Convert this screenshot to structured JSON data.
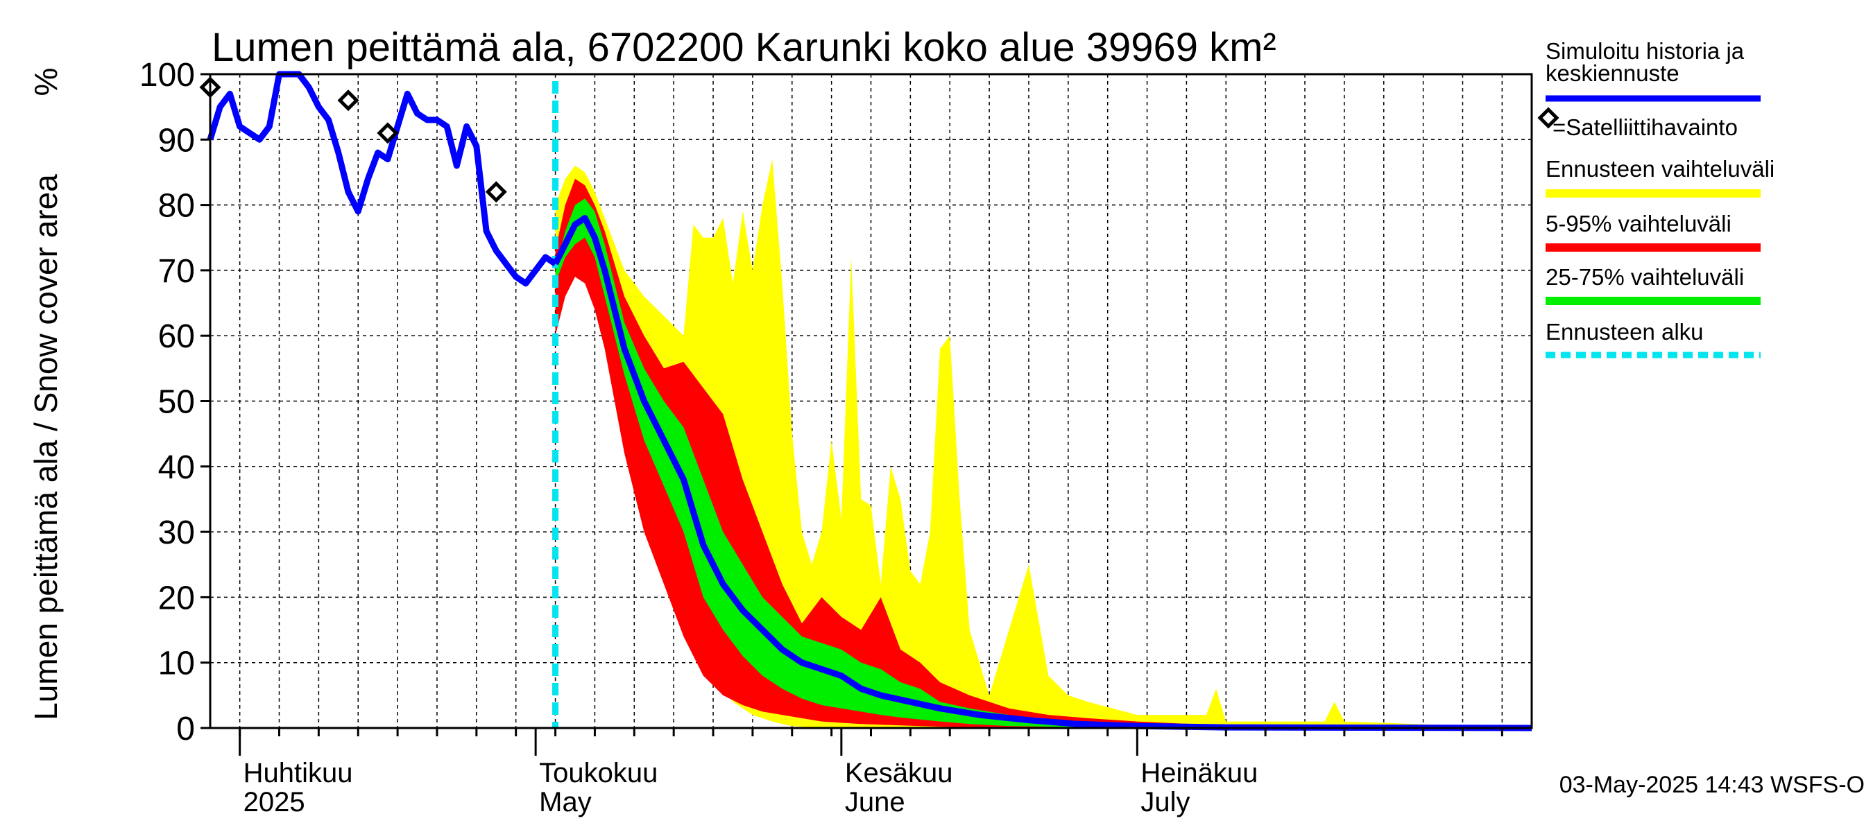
{
  "chart_data": {
    "type": "area",
    "title": "Lumen peittämä ala, 6702200 Karunki koko alue 39969 km²",
    "ylabel": "Lumen peittämä ala / Snow cover area",
    "yunit": "%",
    "ylim": [
      0,
      100
    ],
    "yticks": [
      0,
      10,
      20,
      30,
      40,
      50,
      60,
      70,
      80,
      90,
      100
    ],
    "xlim": [
      "2025-03-29",
      "2025-08-10"
    ],
    "forecast_start": "2025-05-03",
    "grid": true,
    "month_labels": [
      {
        "date": "2025-04-01",
        "fi": "Huhtikuu",
        "en": "2025"
      },
      {
        "date": "2025-05-01",
        "fi": "Toukokuu",
        "en": "May"
      },
      {
        "date": "2025-06-01",
        "fi": "Kesäkuu",
        "en": "June"
      },
      {
        "date": "2025-07-01",
        "fi": "Heinäkuu",
        "en": "July"
      }
    ],
    "history": {
      "name": "Simuloitu historia ja keskiennuste",
      "x": [
        "2025-03-29",
        "2025-03-30",
        "2025-03-31",
        "2025-04-01",
        "2025-04-02",
        "2025-04-03",
        "2025-04-04",
        "2025-04-05",
        "2025-04-06",
        "2025-04-07",
        "2025-04-08",
        "2025-04-09",
        "2025-04-10",
        "2025-04-11",
        "2025-04-12",
        "2025-04-13",
        "2025-04-14",
        "2025-04-15",
        "2025-04-16",
        "2025-04-17",
        "2025-04-18",
        "2025-04-19",
        "2025-04-20",
        "2025-04-21",
        "2025-04-22",
        "2025-04-23",
        "2025-04-24",
        "2025-04-25",
        "2025-04-26",
        "2025-04-27",
        "2025-04-28",
        "2025-04-29",
        "2025-04-30",
        "2025-05-01",
        "2025-05-02",
        "2025-05-03"
      ],
      "y": [
        90,
        95,
        97,
        92,
        91,
        90,
        92,
        100,
        100,
        100,
        98,
        95,
        93,
        88,
        82,
        79,
        84,
        88,
        87,
        92,
        97,
        94,
        93,
        93,
        92,
        86,
        92,
        89,
        76,
        73,
        71,
        69,
        68,
        70,
        72,
        71
      ]
    },
    "median": {
      "x": [
        "2025-05-03",
        "2025-05-04",
        "2025-05-05",
        "2025-05-06",
        "2025-05-07",
        "2025-05-08",
        "2025-05-10",
        "2025-05-12",
        "2025-05-14",
        "2025-05-16",
        "2025-05-18",
        "2025-05-20",
        "2025-05-22",
        "2025-05-24",
        "2025-05-26",
        "2025-05-28",
        "2025-05-30",
        "2025-06-01",
        "2025-06-03",
        "2025-06-05",
        "2025-06-08",
        "2025-06-11",
        "2025-06-15",
        "2025-06-20",
        "2025-06-25",
        "2025-07-01",
        "2025-07-10",
        "2025-08-10"
      ],
      "y": [
        71,
        74,
        77,
        78,
        75,
        70,
        58,
        50,
        44,
        38,
        28,
        22,
        18,
        15,
        12,
        10,
        9,
        8,
        6,
        5,
        4,
        3,
        2,
        1.2,
        0.6,
        0.3,
        0.1,
        0
      ]
    },
    "bands": [
      {
        "name": "Ennusteen vaihteluväli",
        "color": "#ffff00",
        "x": [
          "2025-05-03",
          "2025-05-04",
          "2025-05-05",
          "2025-05-06",
          "2025-05-07",
          "2025-05-08",
          "2025-05-10",
          "2025-05-12",
          "2025-05-14",
          "2025-05-16",
          "2025-05-17",
          "2025-05-18",
          "2025-05-19",
          "2025-05-20",
          "2025-05-21",
          "2025-05-22",
          "2025-05-23",
          "2025-05-24",
          "2025-05-25",
          "2025-05-26",
          "2025-05-27",
          "2025-05-28",
          "2025-05-29",
          "2025-05-30",
          "2025-05-31",
          "2025-06-01",
          "2025-06-02",
          "2025-06-03",
          "2025-06-04",
          "2025-06-05",
          "2025-06-06",
          "2025-06-07",
          "2025-06-08",
          "2025-06-09",
          "2025-06-10",
          "2025-06-11",
          "2025-06-12",
          "2025-06-13",
          "2025-06-14",
          "2025-06-16",
          "2025-06-18",
          "2025-06-20",
          "2025-06-22",
          "2025-06-24",
          "2025-06-26",
          "2025-07-01",
          "2025-07-05",
          "2025-07-08",
          "2025-07-09",
          "2025-07-10",
          "2025-07-20",
          "2025-07-21",
          "2025-07-22",
          "2025-08-10"
        ],
        "upper": [
          80,
          84,
          86,
          85,
          82,
          78,
          70,
          66,
          63,
          60,
          77,
          75,
          75,
          78,
          68,
          79,
          70,
          80,
          87,
          68,
          45,
          30,
          25,
          30,
          44,
          32,
          72,
          35,
          34,
          22,
          40,
          35,
          24,
          22,
          30,
          58,
          60,
          35,
          15,
          5,
          15,
          25,
          8,
          5,
          4,
          2,
          2,
          2,
          6,
          1,
          1,
          4,
          1,
          0
        ],
        "lower": [
          64,
          67,
          70,
          69,
          66,
          61,
          45,
          35,
          26,
          18,
          14,
          11,
          8,
          6,
          4,
          3,
          2,
          1.5,
          1,
          0.6,
          0.3,
          0.2,
          0.1,
          0,
          0,
          0,
          0,
          0,
          0,
          0,
          0,
          0,
          0,
          0,
          0,
          0,
          0,
          0,
          0,
          0,
          0,
          0,
          0,
          0,
          0,
          0,
          0,
          0,
          0,
          0,
          0,
          0,
          0,
          0
        ]
      },
      {
        "name": "5-95% vaihteluväli",
        "color": "#ff0000",
        "x": [
          "2025-05-03",
          "2025-05-04",
          "2025-05-05",
          "2025-05-06",
          "2025-05-07",
          "2025-05-08",
          "2025-05-10",
          "2025-05-12",
          "2025-05-14",
          "2025-05-16",
          "2025-05-18",
          "2025-05-20",
          "2025-05-22",
          "2025-05-24",
          "2025-05-26",
          "2025-05-28",
          "2025-05-30",
          "2025-06-01",
          "2025-06-03",
          "2025-06-05",
          "2025-06-07",
          "2025-06-09",
          "2025-06-11",
          "2025-06-14",
          "2025-06-18",
          "2025-06-22",
          "2025-06-26",
          "2025-07-01",
          "2025-07-08",
          "2025-07-15",
          "2025-08-10"
        ],
        "upper": [
          73,
          80,
          84,
          83,
          80,
          76,
          66,
          60,
          55,
          56,
          52,
          48,
          38,
          30,
          22,
          16,
          20,
          17,
          15,
          20,
          12,
          10,
          7,
          5,
          3,
          2,
          1.5,
          1,
          0.5,
          0.3,
          0
        ],
        "lower": [
          60,
          66,
          69,
          68,
          64,
          58,
          42,
          30,
          22,
          14,
          8,
          5,
          3.5,
          2.5,
          2,
          1.5,
          1,
          0.8,
          0.6,
          0.5,
          0.4,
          0.3,
          0.2,
          0.1,
          0,
          0,
          0,
          0,
          0,
          0,
          0
        ]
      },
      {
        "name": "25-75% vaihteluväli",
        "color": "#00ee00",
        "x": [
          "2025-05-03",
          "2025-05-04",
          "2025-05-05",
          "2025-05-06",
          "2025-05-07",
          "2025-05-08",
          "2025-05-10",
          "2025-05-12",
          "2025-05-14",
          "2025-05-16",
          "2025-05-18",
          "2025-05-20",
          "2025-05-22",
          "2025-05-24",
          "2025-05-26",
          "2025-05-28",
          "2025-05-30",
          "2025-06-01",
          "2025-06-03",
          "2025-06-05",
          "2025-06-07",
          "2025-06-09",
          "2025-06-11",
          "2025-06-14",
          "2025-06-18",
          "2025-06-22",
          "2025-06-26",
          "2025-07-01",
          "2025-07-08",
          "2025-08-10"
        ],
        "upper": [
          70,
          76,
          80,
          81,
          79,
          74,
          62,
          55,
          50,
          46,
          38,
          30,
          25,
          20,
          17,
          14,
          13,
          12,
          10,
          9,
          7,
          6,
          4,
          3,
          2,
          1,
          0.6,
          0.3,
          0.1,
          0
        ],
        "lower": [
          68,
          72,
          74,
          75,
          72,
          66,
          54,
          44,
          37,
          30,
          20,
          15,
          11,
          8,
          6,
          4.5,
          3.5,
          3,
          2.5,
          2,
          1.6,
          1.3,
          1,
          0.6,
          0.3,
          0.2,
          0.1,
          0,
          0,
          0
        ]
      }
    ],
    "satellite_observations": {
      "name": "=Satelliittihavainto",
      "x": [
        "2025-03-29",
        "2025-04-12",
        "2025-04-16",
        "2025-04-27"
      ],
      "y": [
        98,
        96,
        91,
        82
      ]
    },
    "legend": {
      "placement": "right",
      "items": [
        {
          "label": "Simuloitu historia ja",
          "label2": "keskiennuste",
          "color": "#0000ff",
          "style": "line"
        },
        {
          "label": "=Satelliittihavainto",
          "style": "marker"
        },
        {
          "label": "Ennusteen vaihteluväli",
          "color": "#ffff00",
          "style": "line"
        },
        {
          "label": "5-95% vaihteluväli",
          "color": "#ff0000",
          "style": "line"
        },
        {
          "label": "25-75% vaihteluväli",
          "color": "#00ee00",
          "style": "line"
        },
        {
          "label": "Ennusteen alku",
          "color": "#00e5ee",
          "style": "dashed"
        }
      ]
    },
    "footer": "03-May-2025 14:43 WSFS-O"
  }
}
